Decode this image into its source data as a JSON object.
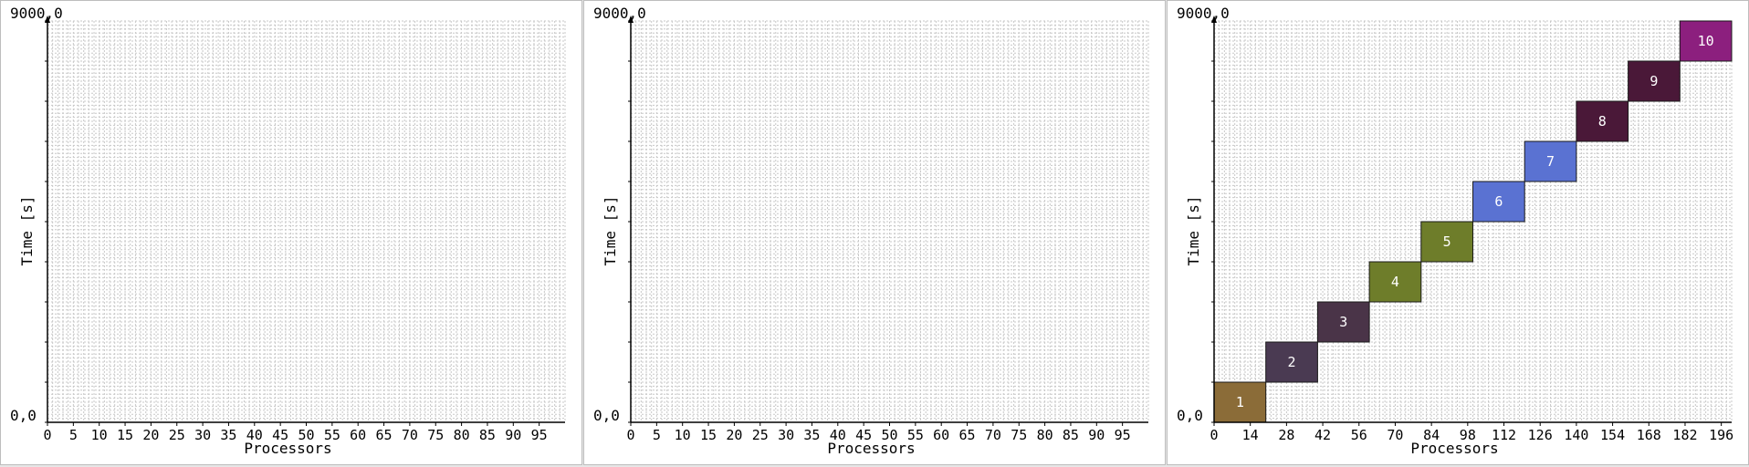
{
  "chart_data": [
    {
      "type": "bar",
      "xlabel": "Processors",
      "ylabel": "Time [s]",
      "ymax_label": "9000,0",
      "ymin_label": "0,0",
      "xlim": [
        0,
        100
      ],
      "ylim": [
        0,
        9000
      ],
      "x_ticks": [
        0,
        5,
        10,
        15,
        20,
        25,
        30,
        35,
        40,
        45,
        50,
        55,
        60,
        65,
        70,
        75,
        80,
        85,
        90,
        95
      ],
      "grid": true,
      "blocks": []
    },
    {
      "type": "bar",
      "xlabel": "Processors",
      "ylabel": "Time [s]",
      "ymax_label": "9000,0",
      "ymin_label": "0,0",
      "xlim": [
        0,
        100
      ],
      "ylim": [
        0,
        9000
      ],
      "x_ticks": [
        0,
        5,
        10,
        15,
        20,
        25,
        30,
        35,
        40,
        45,
        50,
        55,
        60,
        65,
        70,
        75,
        80,
        85,
        90,
        95
      ],
      "grid": true,
      "blocks": []
    },
    {
      "type": "bar",
      "xlabel": "Processors",
      "ylabel": "Time [s]",
      "ymax_label": "9000,0",
      "ymin_label": "0,0",
      "xlim": [
        0,
        200
      ],
      "ylim": [
        0,
        9000
      ],
      "x_ticks": [
        0,
        14,
        28,
        42,
        56,
        70,
        84,
        98,
        112,
        126,
        140,
        154,
        168,
        182,
        196
      ],
      "grid": true,
      "blocks": [
        {
          "label": "1",
          "x0": 0,
          "x1": 20,
          "y0": 0,
          "y1": 900,
          "color": "#8b6c38"
        },
        {
          "label": "2",
          "x0": 20,
          "x1": 40,
          "y0": 900,
          "y1": 1800,
          "color": "#4a3a52"
        },
        {
          "label": "3",
          "x0": 40,
          "x1": 60,
          "y0": 1800,
          "y1": 2700,
          "color": "#4a3448"
        },
        {
          "label": "4",
          "x0": 60,
          "x1": 80,
          "y0": 2700,
          "y1": 3600,
          "color": "#6e7d2a"
        },
        {
          "label": "5",
          "x0": 80,
          "x1": 100,
          "y0": 3600,
          "y1": 4500,
          "color": "#6e7d2a"
        },
        {
          "label": "6",
          "x0": 100,
          "x1": 120,
          "y0": 4500,
          "y1": 5400,
          "color": "#5a72d2"
        },
        {
          "label": "7",
          "x0": 120,
          "x1": 140,
          "y0": 5400,
          "y1": 6300,
          "color": "#5a72d2"
        },
        {
          "label": "8",
          "x0": 140,
          "x1": 160,
          "y0": 6300,
          "y1": 7200,
          "color": "#4a1838"
        },
        {
          "label": "9",
          "x0": 160,
          "x1": 180,
          "y0": 7200,
          "y1": 8100,
          "color": "#4a1838"
        },
        {
          "label": "10",
          "x0": 180,
          "x1": 200,
          "y0": 8100,
          "y1": 9000,
          "color": "#8c1f7e"
        }
      ]
    }
  ]
}
